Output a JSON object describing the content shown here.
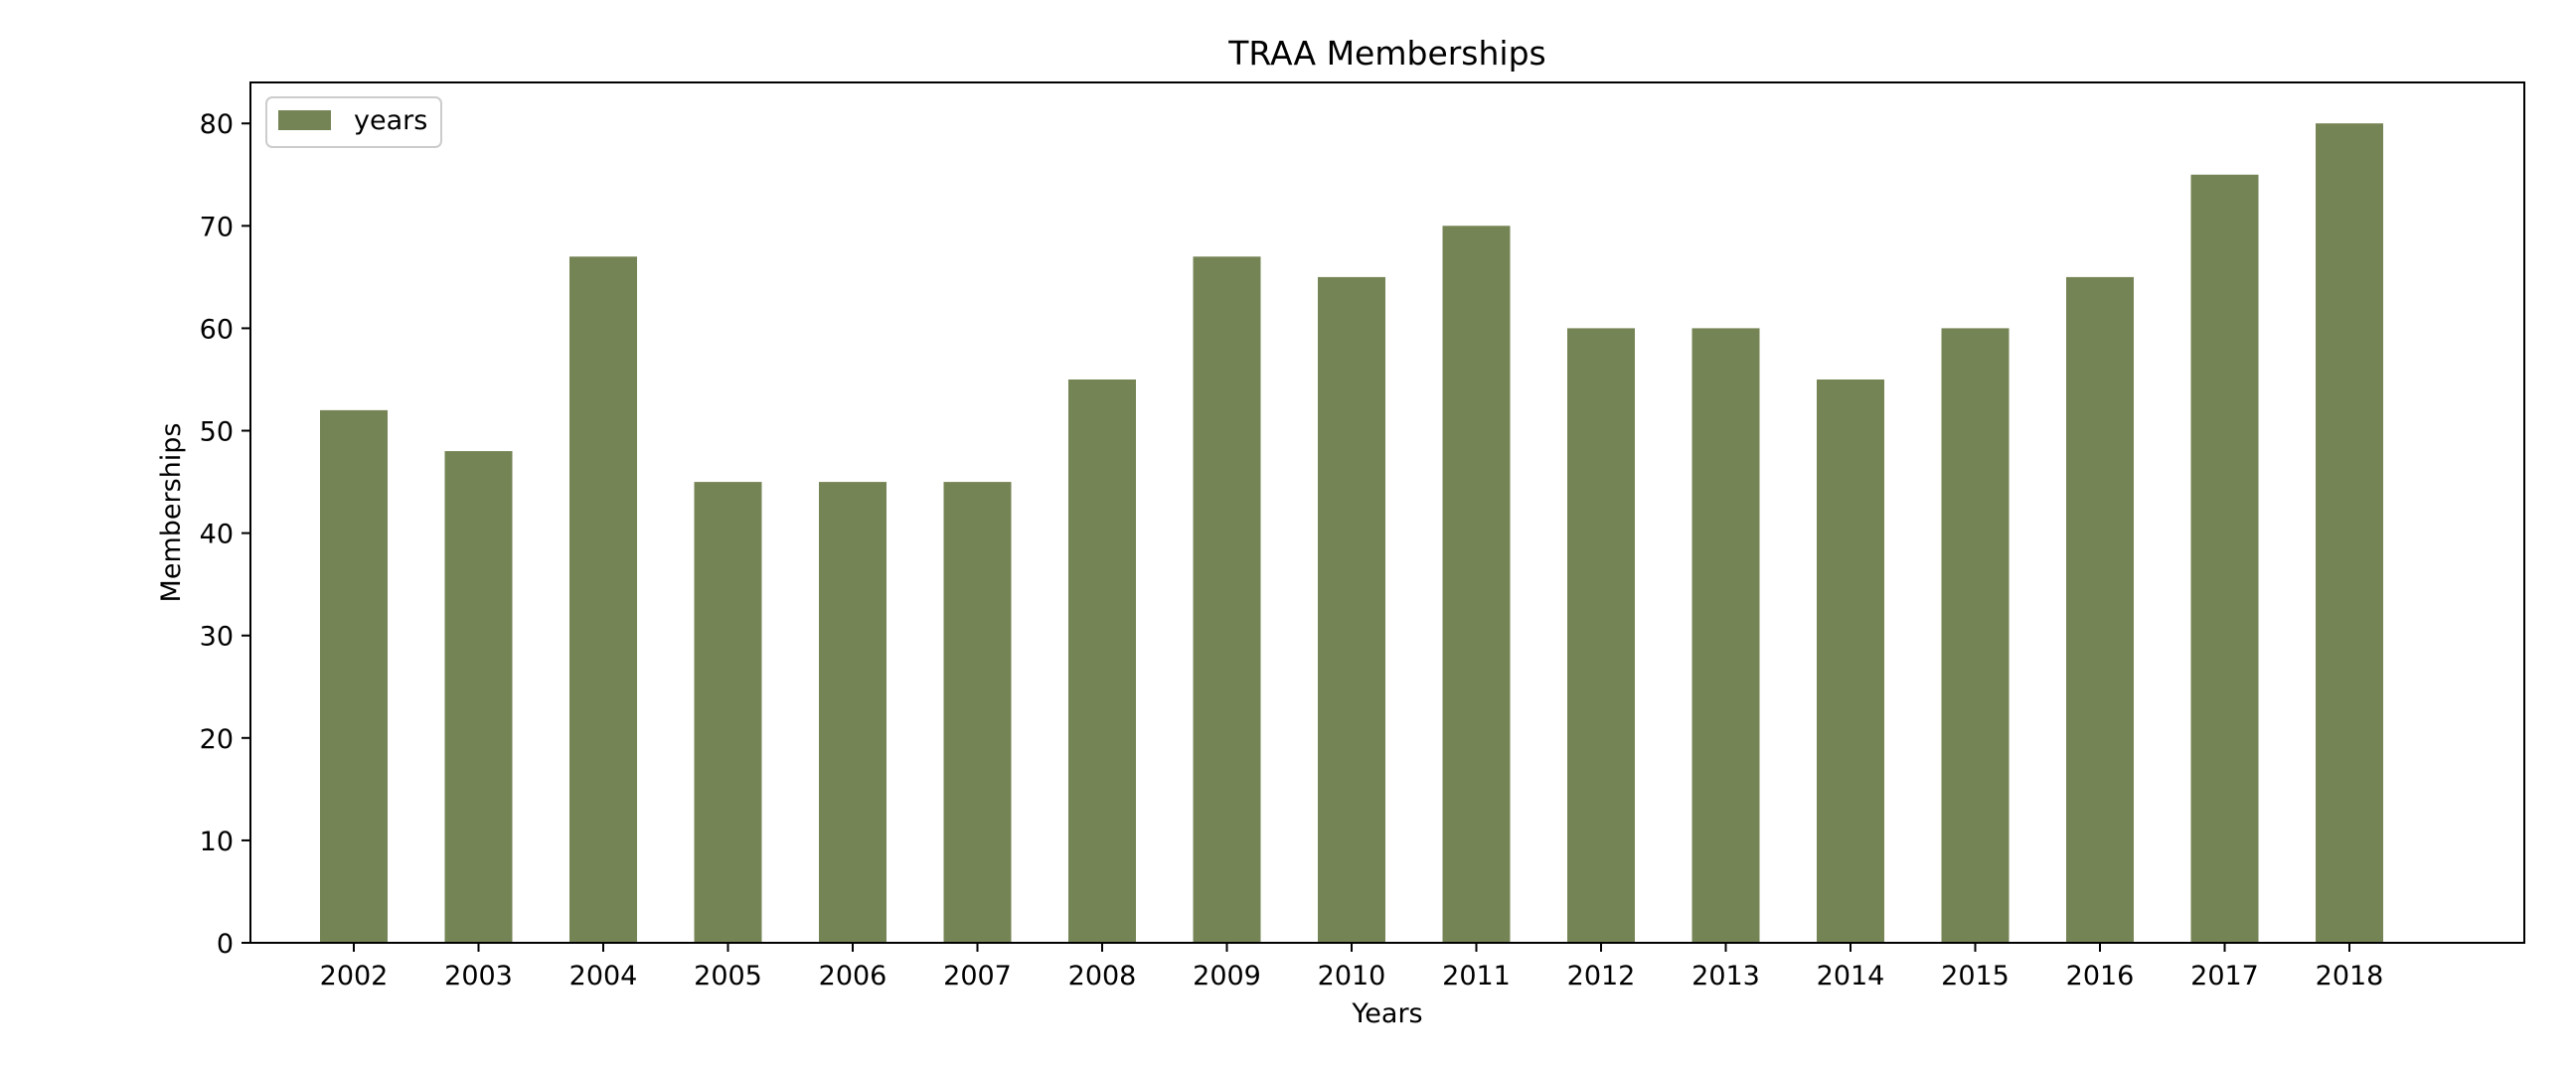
{
  "chart_data": {
    "type": "bar",
    "title": "TRAA Memberships",
    "xlabel": "Years",
    "ylabel": "Memberships",
    "categories": [
      "2002",
      "2003",
      "2004",
      "2005",
      "2006",
      "2007",
      "2008",
      "2009",
      "2010",
      "2011",
      "2012",
      "2013",
      "2014",
      "2015",
      "2016",
      "2017",
      "2018"
    ],
    "series": [
      {
        "name": "years",
        "values": [
          52,
          48,
          67,
          45,
          45,
          45,
          55,
          67,
          65,
          70,
          60,
          60,
          55,
          60,
          65,
          75,
          80
        ]
      }
    ],
    "yticks": [
      0,
      10,
      20,
      30,
      40,
      50,
      60,
      70,
      80
    ],
    "ylim": [
      0,
      84
    ],
    "grid": false,
    "legend_position": "upper-left",
    "bar_color": "#758454"
  }
}
